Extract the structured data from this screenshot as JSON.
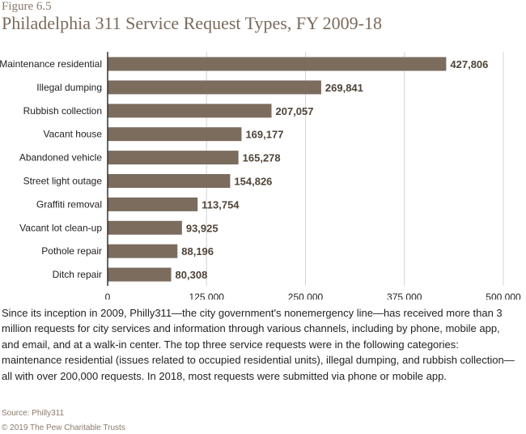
{
  "figure": {
    "label": "Figure 6.5",
    "title": "Philadelphia 311 Service Request Types, FY 2009-18",
    "description": "Since its inception in 2009, Philly311—the city government's nonemergency line—has received more than 3 million requests for city services and information through various channels, including by phone, mobile app, and email, and at a walk-in center. The top three service requests were in the following categories: maintenance residential (issues related to occupied residential units), illegal dumping, and rubbish collection—all with over 200,000 requests. In 2018, most requests were submitted via phone or mobile app.",
    "source": "Source: Philly311",
    "copyright": "© 2019 The Pew Charitable Trusts"
  },
  "colors": {
    "bar": "#7b6c5e",
    "gridline": "#d4d4d4",
    "axis": "#333333"
  },
  "chart_data": {
    "type": "bar",
    "orientation": "horizontal",
    "title": "Philadelphia 311 Service Request Types, FY 2009-18",
    "categories": [
      "Maintenance residential",
      "Illegal dumping",
      "Rubbish collection",
      "Vacant house",
      "Abandoned vehicle",
      "Street light outage",
      "Graffiti removal",
      "Vacant lot clean-up",
      "Pothole repair",
      "Ditch repair"
    ],
    "values": [
      427806,
      269841,
      207057,
      169177,
      165278,
      154826,
      113754,
      93925,
      88196,
      80308
    ],
    "value_labels": [
      "427,806",
      "269,841",
      "207,057",
      "169,177",
      "165,278",
      "154,826",
      "113,754",
      "93,925",
      "88,196",
      "80,308"
    ],
    "xlim": [
      0,
      500000
    ],
    "xticks": [
      0,
      125000,
      250000,
      375000,
      500000
    ],
    "xtick_labels": [
      "0",
      "125,000",
      "250,000",
      "375,000",
      "500,000"
    ],
    "xlabel": "",
    "ylabel": "",
    "grid": true
  }
}
